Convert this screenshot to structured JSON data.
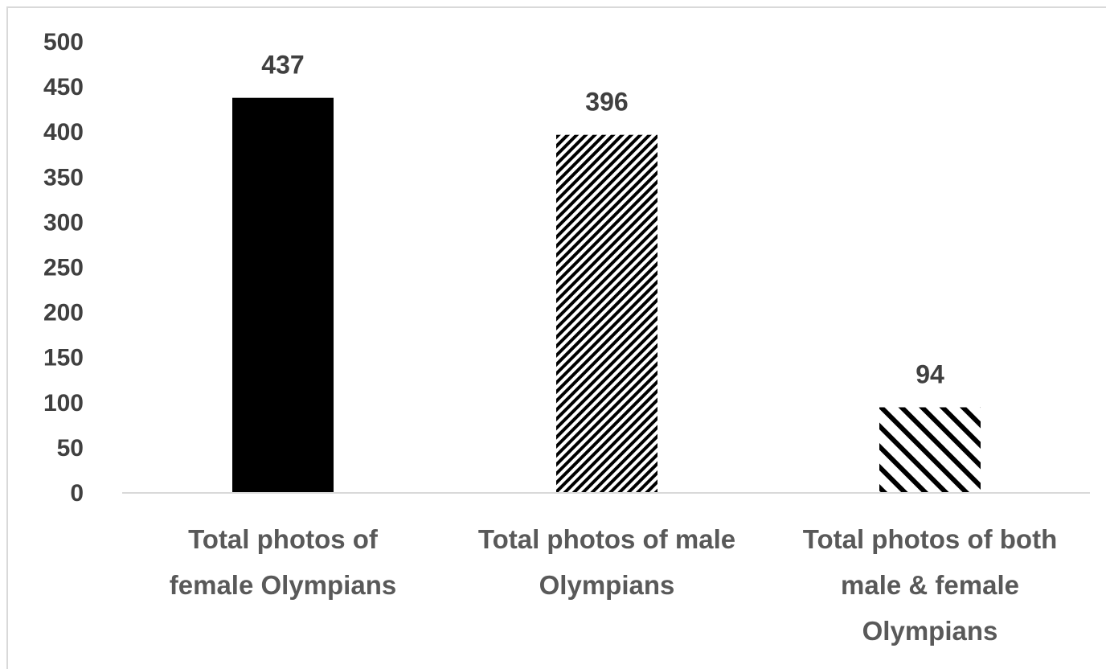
{
  "chart_data": {
    "type": "bar",
    "categories": [
      [
        "Total photos of",
        "female Olympians"
      ],
      [
        "Total photos of male",
        "Olympians"
      ],
      [
        "Total photos of both",
        "male & female",
        "Olympians"
      ]
    ],
    "values": [
      437,
      396,
      94
    ],
    "data_labels": [
      "437",
      "396",
      "94"
    ],
    "bar_fills": [
      "solid",
      "dense-diagonal-hatch",
      "sparse-diagonal-hatch"
    ],
    "ylim": [
      0,
      500
    ],
    "yticks": [
      0,
      50,
      100,
      150,
      200,
      250,
      300,
      350,
      400,
      450,
      500
    ],
    "grid": false,
    "legend": "none",
    "colors": {
      "bar": "#000000",
      "axis": "#d9d9d9",
      "text": "#404040"
    }
  }
}
